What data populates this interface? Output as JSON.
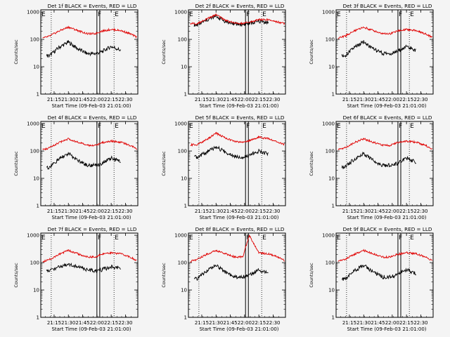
{
  "style": {
    "events_color": "#000000",
    "lld_color": "#e00000",
    "background": "#f4f4f4"
  },
  "common": {
    "ylabel": "Counts/sec",
    "xlabel": "Start Time (09-Feb-03 21:01:00)",
    "yticks": [
      "1",
      "10",
      "100",
      "1000"
    ],
    "xticks": [
      "21:15",
      "21:30",
      "21:45",
      "22:00",
      "22:15",
      "22:30"
    ],
    "flag_labels": [
      "E",
      "F",
      "E"
    ]
  },
  "chart_data": [
    {
      "type": "line",
      "title": "Det 1f BLACK = Events, RED = LLD",
      "xlabel": "Start Time (09-Feb-03 21:01:00)",
      "ylabel": "Counts/sec",
      "y_scale": "log",
      "ylim": [
        1,
        1200
      ],
      "xlim": [
        "21:01",
        "22:43"
      ],
      "x": [
        "21:03",
        "21:10",
        "21:20",
        "21:30",
        "21:40",
        "21:50",
        "21:58",
        "22:05",
        "22:15",
        "22:25",
        "22:35",
        "22:42"
      ],
      "series": [
        {
          "name": "Events",
          "start": "21:07",
          "end": "22:25",
          "values": [
            null,
            25,
            50,
            80,
            45,
            30,
            30,
            35,
            55,
            40,
            null,
            null
          ]
        },
        {
          "name": "LLD",
          "start": "21:03",
          "end": "22:42",
          "values": [
            110,
            130,
            200,
            280,
            210,
            160,
            160,
            200,
            230,
            210,
            160,
            120
          ]
        }
      ],
      "flags": [
        "21:12",
        "22:00",
        "22:03",
        "22:18"
      ]
    },
    {
      "type": "line",
      "title": "Det 2f BLACK = Events, RED = LLD",
      "xlabel": "Start Time (09-Feb-03 21:01:00)",
      "ylabel": "Counts/sec",
      "y_scale": "log",
      "ylim": [
        1,
        1200
      ],
      "xlim": [
        "21:01",
        "22:43"
      ],
      "x": [
        "21:03",
        "21:10",
        "21:20",
        "21:30",
        "21:40",
        "21:50",
        "21:58",
        "22:05",
        "22:15",
        "22:25",
        "22:35",
        "22:42"
      ],
      "series": [
        {
          "name": "Events",
          "start": "21:07",
          "end": "22:25",
          "values": [
            null,
            330,
            500,
            700,
            450,
            360,
            350,
            380,
            450,
            420,
            null,
            null
          ]
        },
        {
          "name": "LLD",
          "start": "21:03",
          "end": "22:42",
          "values": [
            380,
            370,
            550,
            800,
            500,
            390,
            380,
            420,
            530,
            520,
            430,
            380
          ]
        }
      ],
      "flags": [
        "21:12",
        "22:01",
        "22:04",
        "22:18"
      ]
    },
    {
      "type": "line",
      "title": "Det 3f BLACK = Events, RED = LLD",
      "xlabel": "Start Time (09-Feb-03 21:01:00)",
      "ylabel": "Counts/sec",
      "y_scale": "log",
      "ylim": [
        1,
        1200
      ],
      "xlim": [
        "21:01",
        "22:43"
      ],
      "x": [
        "21:03",
        "21:10",
        "21:20",
        "21:30",
        "21:40",
        "21:50",
        "21:58",
        "22:05",
        "22:15",
        "22:25",
        "22:35",
        "22:42"
      ],
      "series": [
        {
          "name": "Events",
          "start": "21:07",
          "end": "22:25",
          "values": [
            null,
            25,
            50,
            80,
            45,
            30,
            30,
            35,
            55,
            40,
            null,
            null
          ]
        },
        {
          "name": "LLD",
          "start": "21:03",
          "end": "22:42",
          "values": [
            110,
            130,
            200,
            280,
            210,
            160,
            160,
            200,
            230,
            210,
            160,
            120
          ]
        }
      ],
      "flags": [
        "21:12",
        "22:06",
        "22:09",
        "22:18"
      ]
    },
    {
      "type": "line",
      "title": "Det 4f BLACK = Events, RED = LLD",
      "xlabel": "Start Time (09-Feb-03 21:01:00)",
      "ylabel": "Counts/sec",
      "y_scale": "log",
      "ylim": [
        1,
        1200
      ],
      "xlim": [
        "21:01",
        "22:43"
      ],
      "x": [
        "21:03",
        "21:10",
        "21:20",
        "21:30",
        "21:40",
        "21:50",
        "21:58",
        "22:05",
        "22:15",
        "22:25",
        "22:35",
        "22:42"
      ],
      "series": [
        {
          "name": "Events",
          "start": "21:07",
          "end": "22:25",
          "values": [
            null,
            25,
            50,
            80,
            45,
            30,
            30,
            35,
            55,
            40,
            null,
            null
          ]
        },
        {
          "name": "LLD",
          "start": "21:03",
          "end": "22:42",
          "values": [
            110,
            130,
            200,
            280,
            210,
            160,
            160,
            200,
            230,
            210,
            160,
            120
          ]
        }
      ],
      "flags": [
        "21:12",
        "22:00",
        "22:03",
        "22:18"
      ]
    },
    {
      "type": "line",
      "title": "Det 5f BLACK = Events, RED = LLD",
      "xlabel": "Start Time (09-Feb-03 21:01:00)",
      "ylabel": "Counts/sec",
      "y_scale": "log",
      "ylim": [
        1,
        1200
      ],
      "xlim": [
        "21:01",
        "22:43"
      ],
      "x": [
        "21:03",
        "21:10",
        "21:20",
        "21:30",
        "21:40",
        "21:50",
        "21:58",
        "22:05",
        "22:15",
        "22:25",
        "22:35",
        "22:42"
      ],
      "series": [
        {
          "name": "Events",
          "start": "21:07",
          "end": "22:25",
          "values": [
            null,
            60,
            90,
            140,
            90,
            65,
            60,
            70,
            100,
            80,
            null,
            null
          ]
        },
        {
          "name": "LLD",
          "start": "21:03",
          "end": "22:42",
          "values": [
            170,
            170,
            260,
            450,
            300,
            220,
            210,
            240,
            320,
            280,
            210,
            170
          ]
        }
      ],
      "flags": [
        "21:12",
        "22:01",
        "22:04",
        "22:18"
      ]
    },
    {
      "type": "line",
      "title": "Det 6f BLACK = Events, RED = LLD",
      "xlabel": "Start Time (09-Feb-03 21:01:00)",
      "ylabel": "Counts/sec",
      "y_scale": "log",
      "ylim": [
        1,
        1200
      ],
      "xlim": [
        "21:01",
        "22:43"
      ],
      "x": [
        "21:03",
        "21:10",
        "21:20",
        "21:30",
        "21:40",
        "21:50",
        "21:58",
        "22:05",
        "22:15",
        "22:25",
        "22:35",
        "22:42"
      ],
      "series": [
        {
          "name": "Events",
          "start": "21:07",
          "end": "22:25",
          "values": [
            null,
            25,
            50,
            80,
            45,
            30,
            30,
            35,
            55,
            40,
            null,
            null
          ]
        },
        {
          "name": "LLD",
          "start": "21:03",
          "end": "22:42",
          "values": [
            110,
            130,
            200,
            280,
            210,
            160,
            160,
            200,
            230,
            210,
            160,
            120
          ]
        }
      ],
      "flags": [
        "21:12",
        "22:06",
        "22:09",
        "22:18"
      ]
    },
    {
      "type": "line",
      "title": "Det 7f BLACK = Events, RED = LLD",
      "xlabel": "Start Time (09-Feb-03 21:01:00)",
      "ylabel": "Counts/sec",
      "y_scale": "log",
      "ylim": [
        1,
        1200
      ],
      "xlim": [
        "21:01",
        "22:43"
      ],
      "x": [
        "21:03",
        "21:10",
        "21:20",
        "21:30",
        "21:40",
        "21:50",
        "21:58",
        "22:05",
        "22:15",
        "22:25",
        "22:35",
        "22:42"
      ],
      "series": [
        {
          "name": "Events",
          "start": "21:07",
          "end": "22:25",
          "values": [
            null,
            50,
            70,
            90,
            70,
            55,
            50,
            55,
            70,
            65,
            null,
            null
          ]
        },
        {
          "name": "LLD",
          "start": "21:03",
          "end": "22:42",
          "values": [
            110,
            130,
            200,
            280,
            210,
            160,
            160,
            200,
            230,
            210,
            160,
            120
          ]
        }
      ],
      "flags": [
        "21:12",
        "22:00",
        "22:03",
        "22:18"
      ]
    },
    {
      "type": "line",
      "title": "Det 8f BLACK = Events, RED = LLD",
      "xlabel": "Start Time (09-Feb-03 21:01:00)",
      "ylabel": "Counts/sec",
      "y_scale": "log",
      "ylim": [
        1,
        1200
      ],
      "xlim": [
        "21:01",
        "22:43"
      ],
      "x": [
        "21:03",
        "21:10",
        "21:20",
        "21:30",
        "21:40",
        "21:50",
        "21:58",
        "22:05",
        "22:15",
        "22:25",
        "22:35",
        "22:42"
      ],
      "series": [
        {
          "name": "Events",
          "start": "21:07",
          "end": "22:25",
          "values": [
            null,
            25,
            50,
            80,
            45,
            30,
            30,
            35,
            55,
            40,
            null,
            null
          ]
        },
        {
          "name": "LLD",
          "start": "21:03",
          "end": "22:42",
          "values": [
            110,
            130,
            200,
            280,
            210,
            160,
            160,
            1000,
            230,
            210,
            160,
            120
          ]
        }
      ],
      "flags": [
        "21:12",
        "22:01",
        "22:04",
        "22:18"
      ]
    },
    {
      "type": "line",
      "title": "Det 9f BLACK = Events, RED = LLD",
      "xlabel": "Start Time (09-Feb-03 21:01:00)",
      "ylabel": "Counts/sec",
      "y_scale": "log",
      "ylim": [
        1,
        1200
      ],
      "xlim": [
        "21:01",
        "22:43"
      ],
      "x": [
        "21:03",
        "21:10",
        "21:20",
        "21:30",
        "21:40",
        "21:50",
        "21:58",
        "22:05",
        "22:15",
        "22:25",
        "22:35",
        "22:42"
      ],
      "series": [
        {
          "name": "Events",
          "start": "21:07",
          "end": "22:25",
          "values": [
            null,
            25,
            50,
            80,
            45,
            30,
            30,
            35,
            55,
            40,
            null,
            null
          ]
        },
        {
          "name": "LLD",
          "start": "21:03",
          "end": "22:42",
          "values": [
            110,
            130,
            200,
            280,
            210,
            160,
            160,
            200,
            230,
            210,
            160,
            120
          ]
        }
      ],
      "flags": [
        "21:12",
        "22:06",
        "22:09",
        "22:18"
      ]
    }
  ]
}
